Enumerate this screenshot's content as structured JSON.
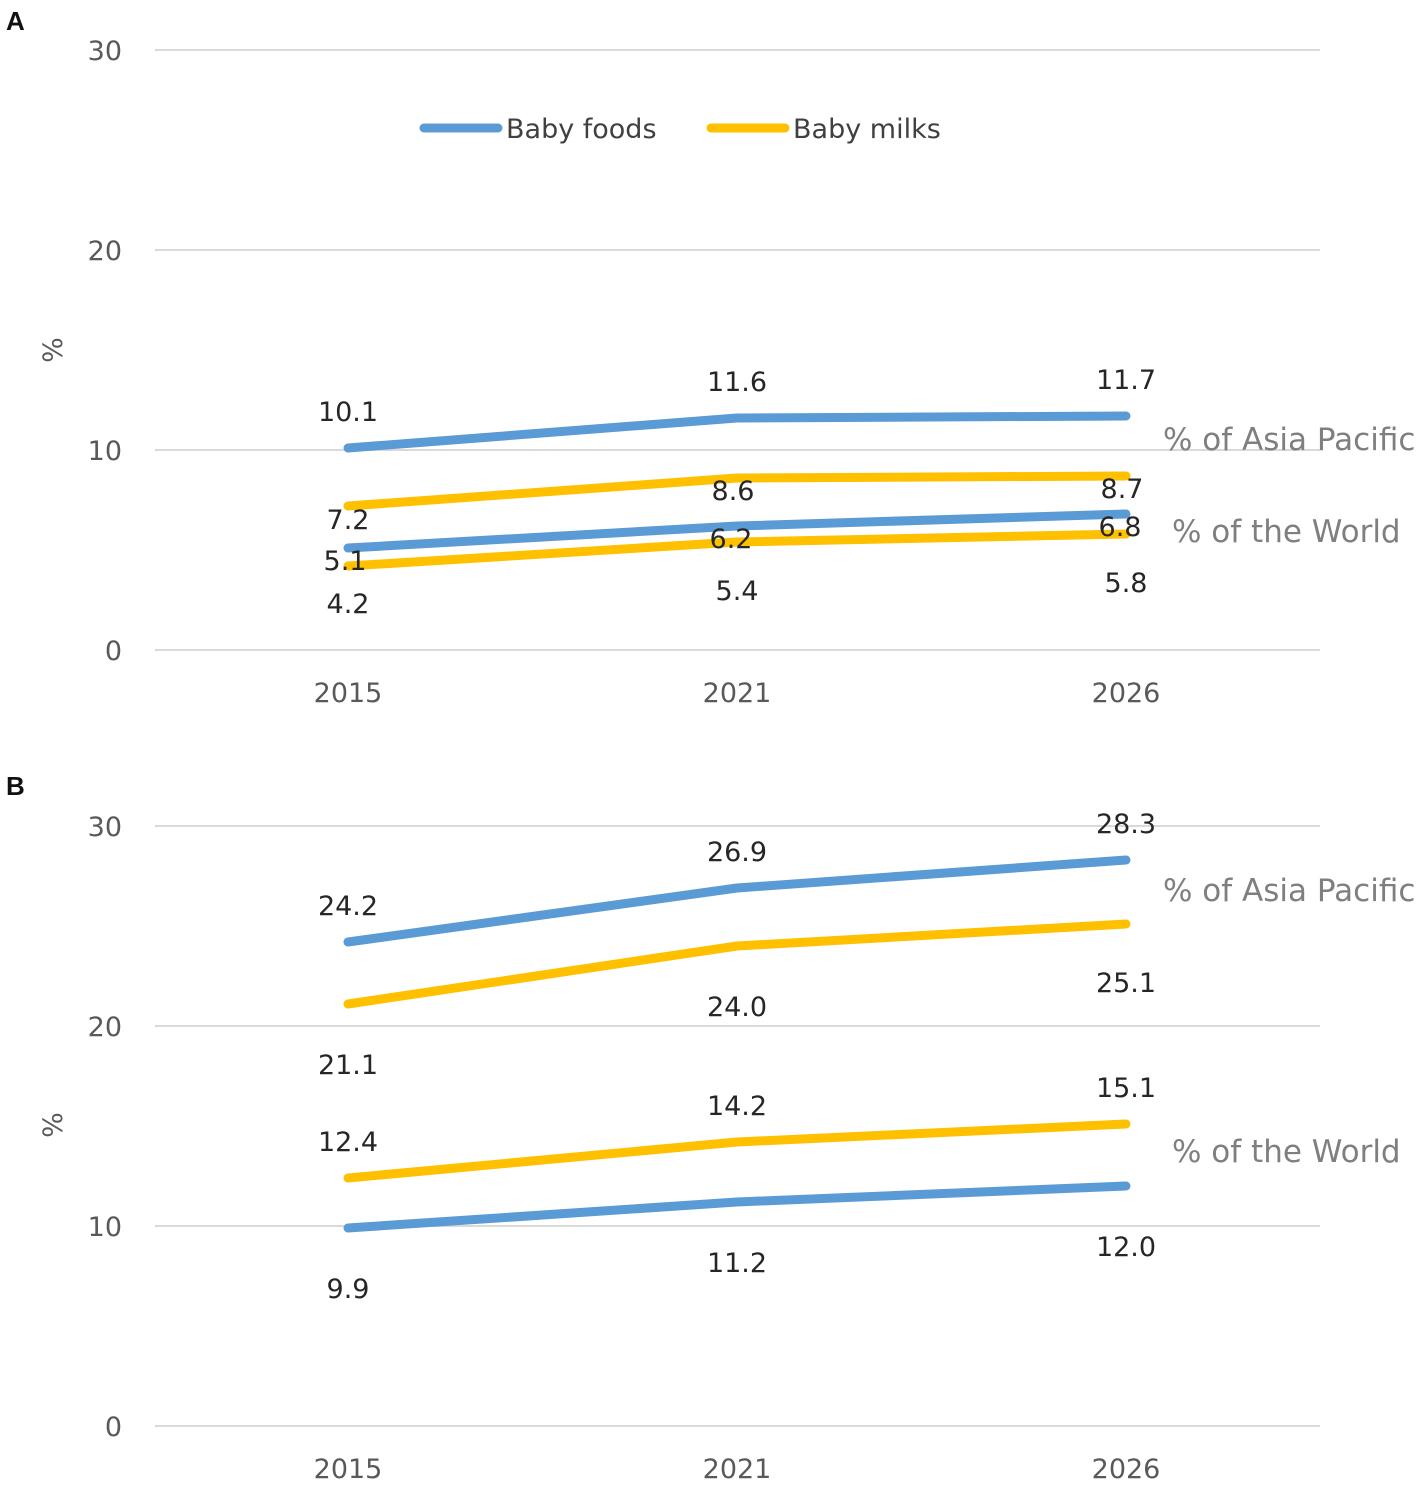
{
  "chart_data": [
    {
      "panel": "A",
      "type": "line",
      "x": [
        "2015",
        "2021",
        "2026"
      ],
      "ylabel": "%",
      "ylim": [
        0,
        30
      ],
      "yticks": [
        0,
        10,
        20,
        30
      ],
      "legend": [
        "Baby foods",
        "Baby milks"
      ],
      "series": [
        {
          "name": "Baby foods",
          "group": "% of Asia Pacific",
          "color": "#5b9bd5",
          "values": [
            10.1,
            11.6,
            11.7
          ],
          "labels": [
            "10.1",
            "11.6",
            "11.7"
          ]
        },
        {
          "name": "Baby milks",
          "group": "% of Asia Pacific",
          "color": "#ffc000",
          "values": [
            7.2,
            8.6,
            8.7
          ],
          "labels": [
            "7.2",
            "8.6",
            "8.7"
          ]
        },
        {
          "name": "Baby foods",
          "group": "% of the World",
          "color": "#5b9bd5",
          "values": [
            5.1,
            6.2,
            6.8
          ],
          "labels": [
            "5.1",
            "6.2",
            "6.8"
          ]
        },
        {
          "name": "Baby milks",
          "group": "% of the World",
          "color": "#ffc000",
          "values": [
            4.2,
            5.4,
            5.8
          ],
          "labels": [
            "4.2",
            "5.4",
            "5.8"
          ]
        }
      ],
      "group_labels": [
        "% of Asia Pacific",
        "% of the World"
      ]
    },
    {
      "panel": "B",
      "type": "line",
      "x": [
        "2015",
        "2021",
        "2026"
      ],
      "ylabel": "%",
      "ylim": [
        0,
        30
      ],
      "yticks": [
        0,
        10,
        20,
        30
      ],
      "series": [
        {
          "name": "Baby foods",
          "group": "% of Asia Pacific",
          "color": "#5b9bd5",
          "values": [
            24.2,
            26.9,
            28.3
          ],
          "labels": [
            "24.2",
            "26.9",
            "28.3"
          ]
        },
        {
          "name": "Baby milks",
          "group": "% of Asia Pacific",
          "color": "#ffc000",
          "values": [
            21.1,
            24.0,
            25.1
          ],
          "labels": [
            "21.1",
            "24.0",
            "25.1"
          ]
        },
        {
          "name": "Baby milks",
          "group": "% of the World",
          "color": "#ffc000",
          "values": [
            12.4,
            14.2,
            15.1
          ],
          "labels": [
            "12.4",
            "14.2",
            "15.1"
          ]
        },
        {
          "name": "Baby foods",
          "group": "% of the World",
          "color": "#5b9bd5",
          "values": [
            9.9,
            11.2,
            12.0
          ],
          "labels": [
            "9.9",
            "11.2",
            "12.0"
          ]
        }
      ],
      "group_labels": [
        "% of Asia Pacific",
        "% of the World"
      ]
    }
  ]
}
